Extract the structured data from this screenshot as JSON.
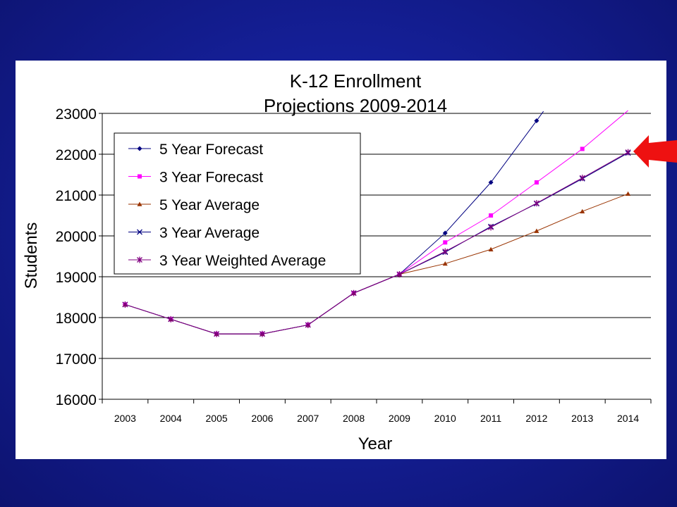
{
  "chart_data": {
    "type": "line",
    "title_lines": [
      "K-12 Enrollment",
      "Projections 2009-2014"
    ],
    "xlabel": "Year",
    "ylabel": "Students",
    "categories": [
      "2003",
      "2004",
      "2005",
      "2006",
      "2007",
      "2008",
      "2009",
      "2010",
      "2011",
      "2012",
      "2013",
      "2014"
    ],
    "ylim": [
      16000,
      23000
    ],
    "yticks": [
      "16000",
      "17000",
      "18000",
      "19000",
      "20000",
      "21000",
      "22000",
      "23000"
    ],
    "grid": "horizontal",
    "legend_position": "top-left",
    "series": [
      {
        "name": "5 Year Forecast",
        "color": "#000080",
        "marker": "diamond",
        "values": [
          18320,
          17960,
          17600,
          17600,
          17820,
          18600,
          19060,
          20070,
          21310,
          22820,
          null,
          null
        ],
        "extends_to": [
          2012.15,
          23050
        ]
      },
      {
        "name": "3 Year Forecast",
        "color": "#ff00ff",
        "marker": "square",
        "values": [
          18320,
          17960,
          17600,
          17600,
          17820,
          18600,
          19060,
          19840,
          20500,
          21310,
          22130,
          null
        ],
        "extends_to": [
          2014,
          23070
        ]
      },
      {
        "name": "5 Year Average",
        "color": "#993300",
        "marker": "triangle",
        "values": [
          18320,
          17960,
          17600,
          17600,
          17820,
          18600,
          19060,
          19320,
          19670,
          20120,
          20600,
          21030
        ]
      },
      {
        "name": "3 Year Average",
        "color": "#000080",
        "marker": "x",
        "values": [
          18320,
          17960,
          17600,
          17600,
          17820,
          18600,
          19060,
          19600,
          20230,
          20790,
          21400,
          22030
        ]
      },
      {
        "name": "3 Year Weighted Average",
        "color": "#800080",
        "marker": "star",
        "values": [
          18320,
          17960,
          17600,
          17600,
          17820,
          18600,
          19060,
          19620,
          20210,
          20800,
          21420,
          22050
        ]
      }
    ]
  },
  "annotation": {
    "arrow_color": "#ee1111",
    "arrow_points_to": "3 Year Average"
  }
}
